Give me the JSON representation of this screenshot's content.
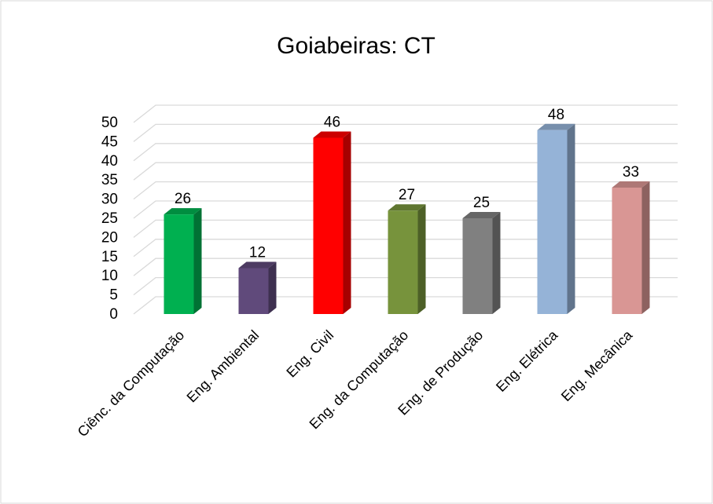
{
  "chart_data": {
    "type": "bar3d",
    "title": "Goiabeiras: CT",
    "categories": [
      "Ciênc. da Computação",
      "Eng. Ambiental",
      "Eng. Civil",
      "Eng. da Computação",
      "Eng. de Produção",
      "Eng. Elétrica",
      "Eng. Mecânica"
    ],
    "values": [
      26,
      12,
      46,
      27,
      25,
      48,
      33
    ],
    "colors": [
      "#00b050",
      "#604a7b",
      "#ff0000",
      "#77933c",
      "#808080",
      "#95b3d7",
      "#d99694"
    ],
    "ylim": [
      0,
      50
    ],
    "yticks": [
      0,
      5,
      10,
      15,
      20,
      25,
      30,
      35,
      40,
      45,
      50
    ],
    "grid": true
  }
}
